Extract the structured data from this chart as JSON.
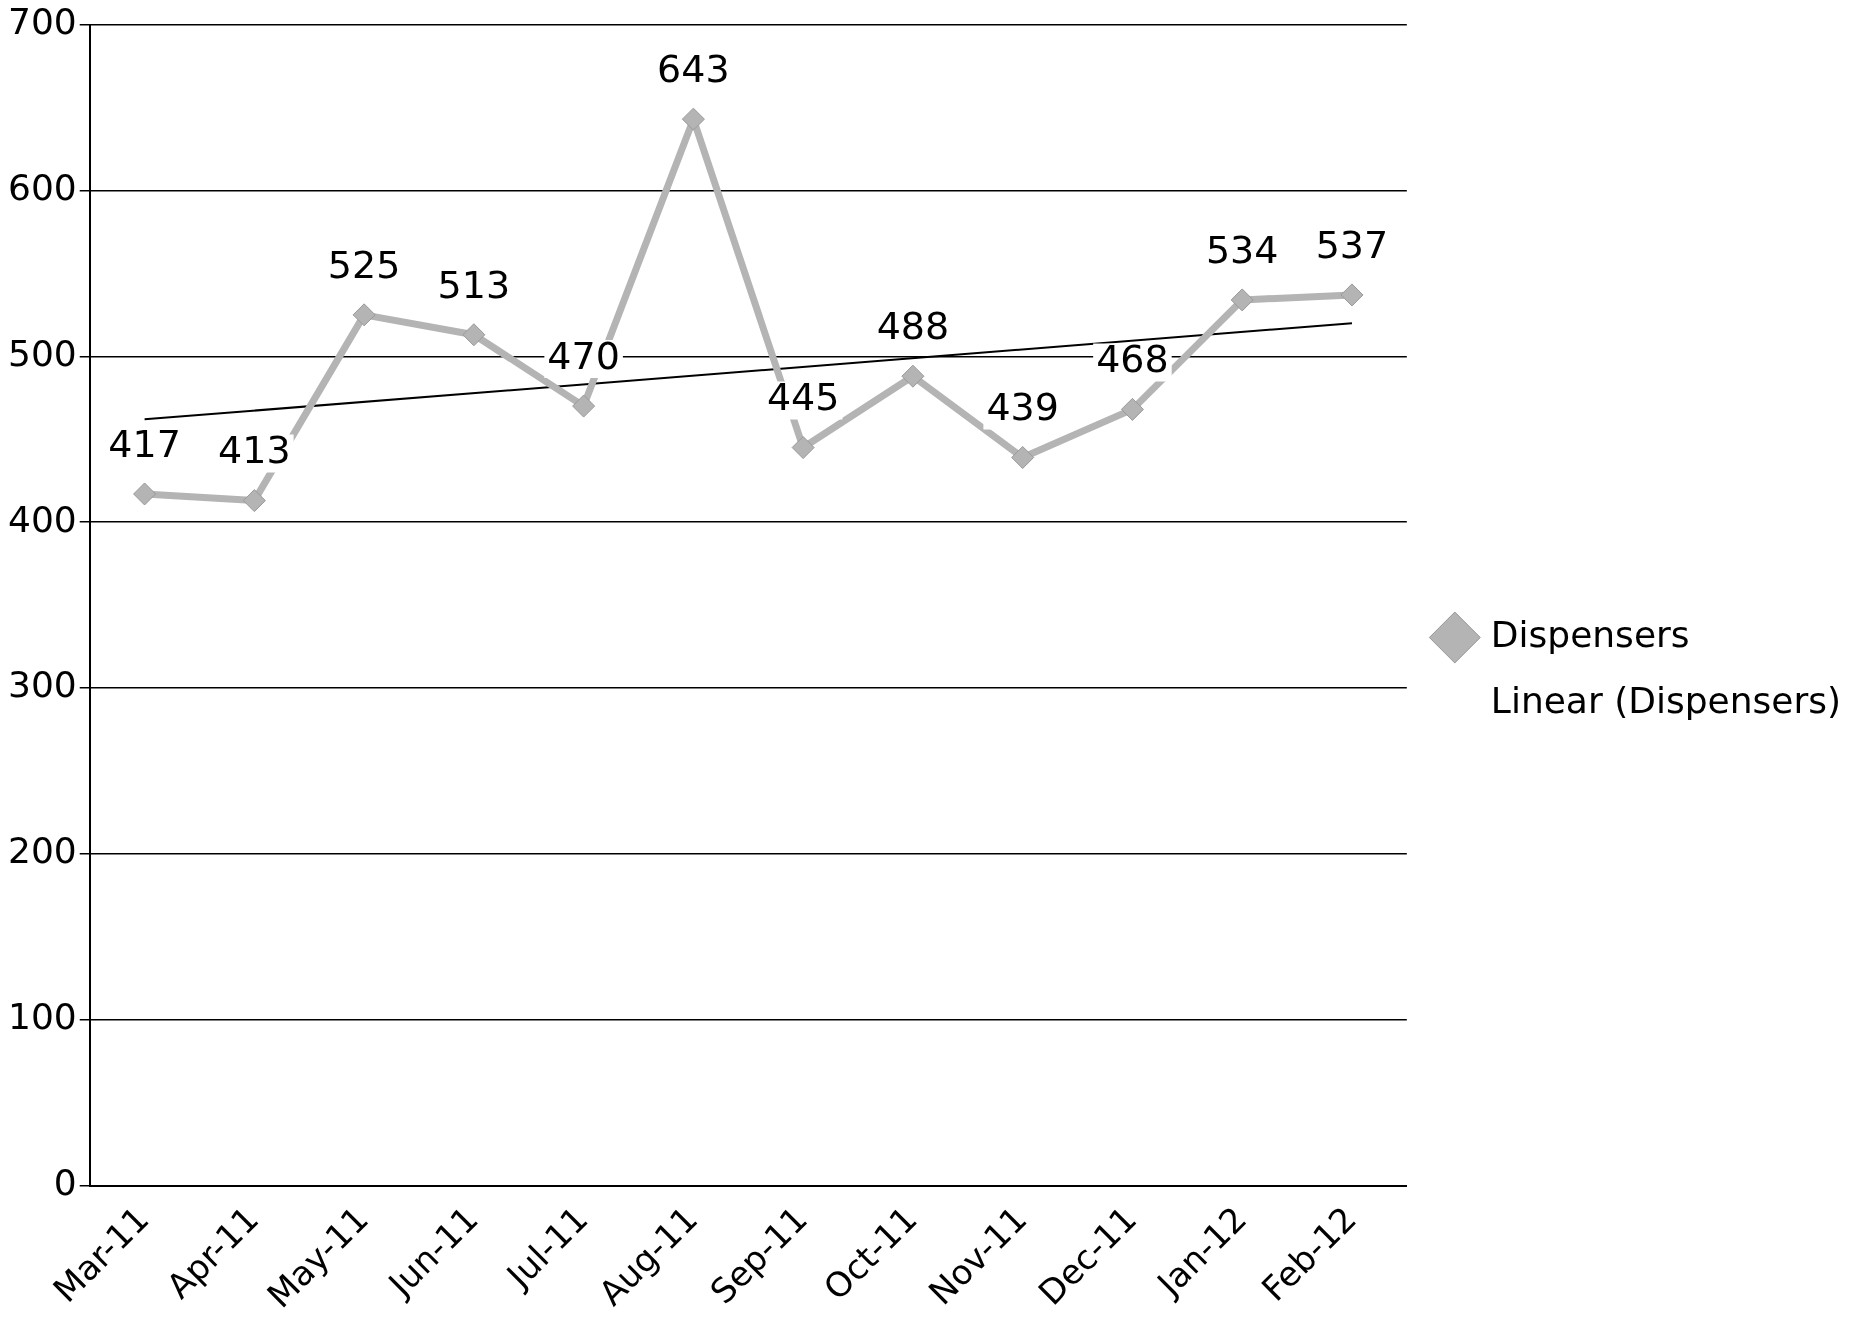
{
  "chart_data": {
    "type": "line",
    "categories": [
      "Mar-11",
      "Apr-11",
      "May-11",
      "Jun-11",
      "Jul-11",
      "Aug-11",
      "Sep-11",
      "Oct-11",
      "Nov-11",
      "Dec-11",
      "Jan-12",
      "Feb-12"
    ],
    "series": [
      {
        "name": "Dispensers",
        "color": "#b4b4b4",
        "values": [
          417,
          413,
          525,
          513,
          470,
          643,
          445,
          488,
          439,
          468,
          534,
          537
        ],
        "marker": "diamond",
        "data_labels": true
      },
      {
        "name": "Linear (Dispensers)",
        "color": "#000000",
        "x": [
          "Mar-11",
          "Feb-12"
        ],
        "values": [
          462,
          520
        ],
        "marker": "none"
      }
    ],
    "ylim": [
      0,
      700
    ],
    "yticks": [
      0,
      100,
      200,
      300,
      400,
      500,
      600,
      700
    ],
    "grid": "y",
    "legend": "right"
  }
}
